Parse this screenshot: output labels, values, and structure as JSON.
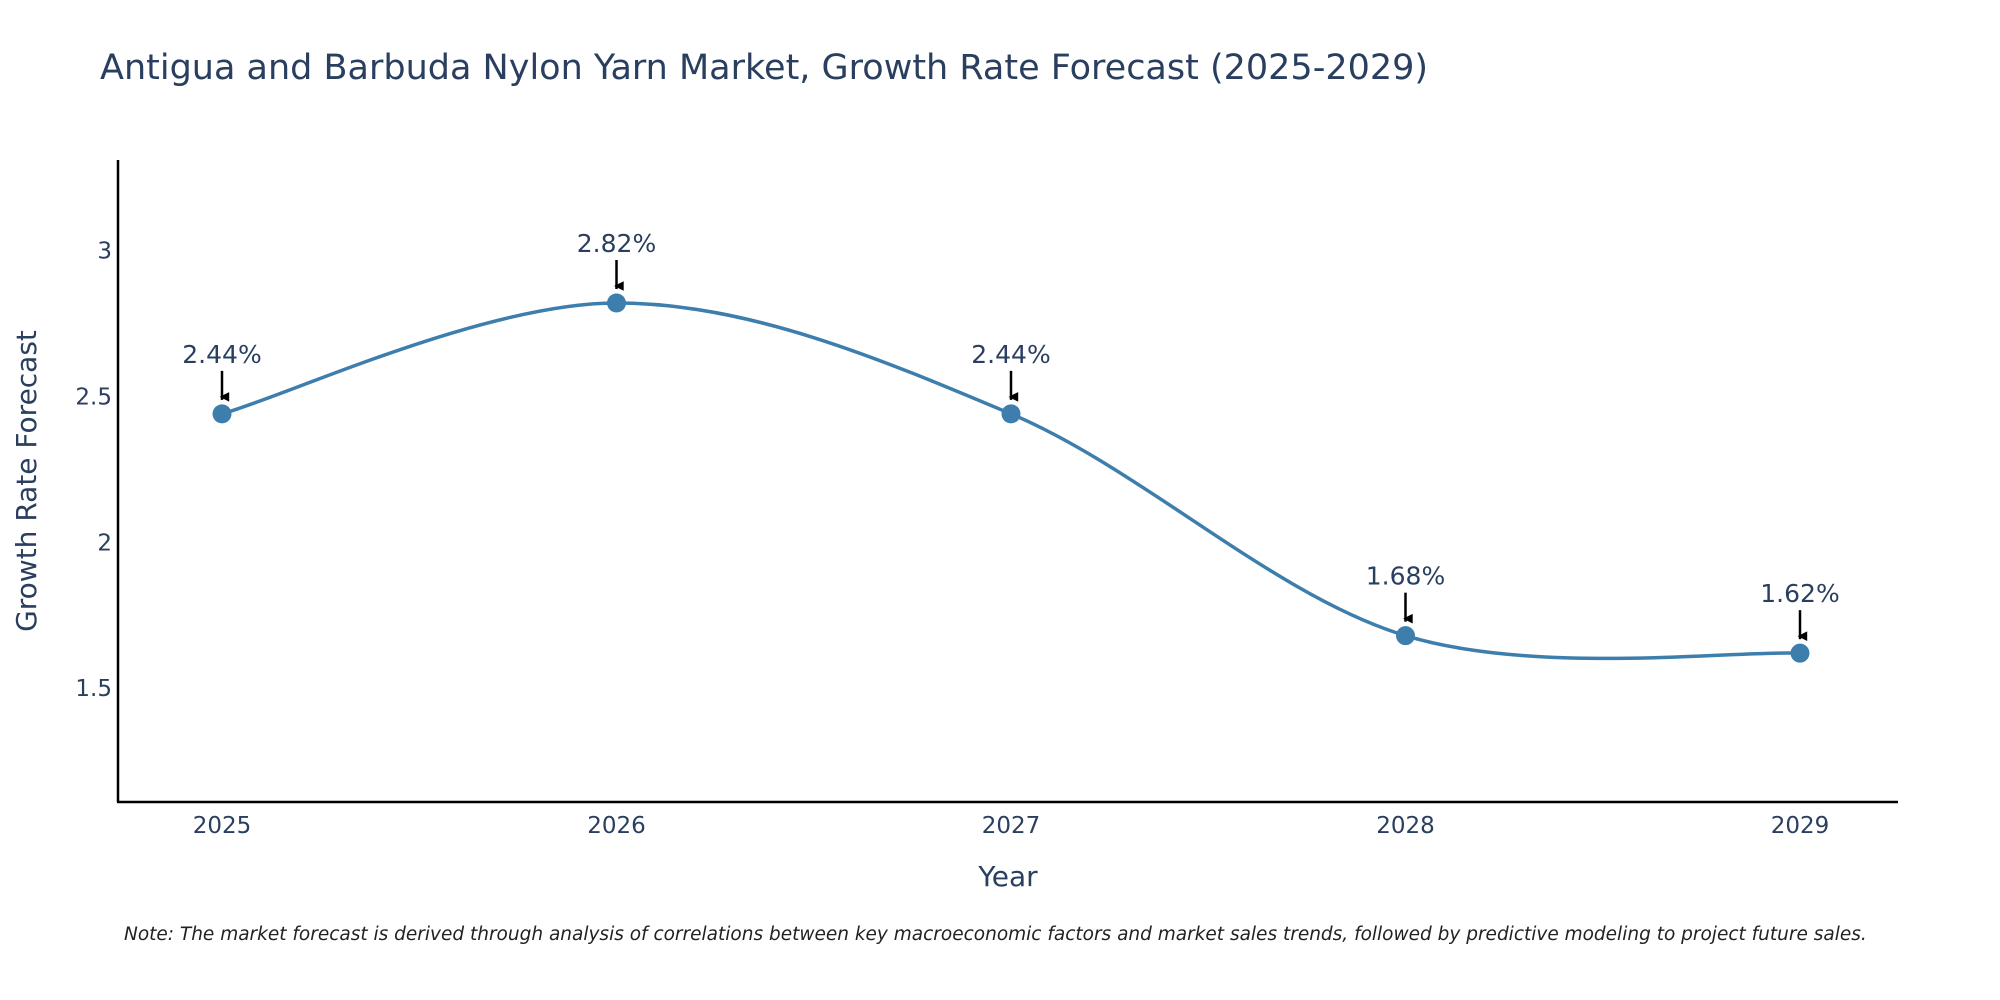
{
  "chart_data": {
    "type": "line",
    "title": "Antigua and Barbuda Nylon Yarn Market, Growth Rate Forecast (2025-2029)",
    "xlabel": "Year",
    "ylabel": "Growth Rate Forecast",
    "categories": [
      "2025",
      "2026",
      "2027",
      "2028",
      "2029"
    ],
    "series": [
      {
        "name": "Growth Rate Forecast",
        "values": [
          2.44,
          2.82,
          2.44,
          1.68,
          1.62
        ],
        "color": "#3d7ead"
      }
    ],
    "data_labels": [
      "2.44%",
      "2.82%",
      "2.44%",
      "1.68%",
      "1.62%"
    ],
    "ylim": [
      1.11,
      3.31
    ],
    "yticks": [
      1.5,
      2,
      2.5,
      3
    ],
    "ytick_labels": [
      "1.5",
      "2",
      "2.5",
      "3"
    ],
    "grid": false,
    "line_shape": "spline",
    "note": "Note: The market forecast is derived through analysis of correlations between key macroeconomic factors and market sales trends, followed by predictive modeling to project future sales."
  }
}
